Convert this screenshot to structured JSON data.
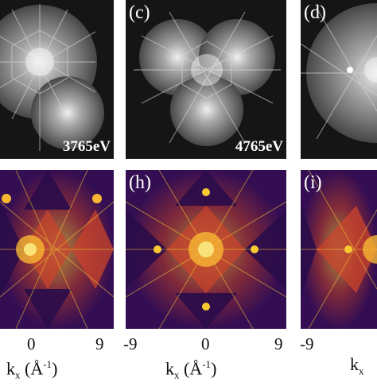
{
  "panels_top": [
    {
      "id": "b",
      "label": "",
      "energy": "3765eV"
    },
    {
      "id": "c",
      "label": "(c)",
      "energy": "4765eV"
    },
    {
      "id": "d",
      "label": "(d)",
      "energy": ""
    }
  ],
  "panels_bottom": [
    {
      "id": "g",
      "label": ""
    },
    {
      "id": "h",
      "label": "(h)"
    },
    {
      "id": "i",
      "label": "(i)"
    }
  ],
  "ticks": {
    "panel1": [
      "0",
      "9"
    ],
    "panel2": [
      "-9",
      "0",
      "9"
    ],
    "panel3": [
      "-9"
    ]
  },
  "axis": {
    "kx": "k",
    "kx_sub": "x",
    "unit_open": " (Å",
    "unit_sup": "-1",
    "unit_close": ")"
  },
  "colors": {
    "top_background": "#151515",
    "bottom_dark": "#2a0c4a",
    "bottom_mid": "#c0392b",
    "bottom_bright": "#f9c932"
  }
}
